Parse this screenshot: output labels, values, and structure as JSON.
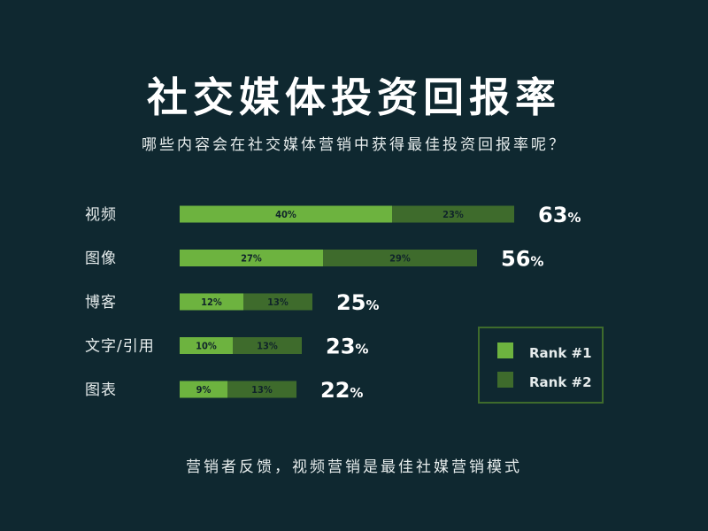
{
  "title": "社交媒体投资回报率",
  "subtitle": "哪些内容会在社交媒体营销中获得最佳投资回报率呢？",
  "footer": "营销者反馈，视频营销是最佳社媒营销模式",
  "colors": {
    "background": "#0f2830",
    "rank1": "#6db33f",
    "rank2": "#3e6b2c",
    "legend_border": "#3e6b2c"
  },
  "chart_data": {
    "type": "bar",
    "orientation": "horizontal",
    "stacked": true,
    "categories": [
      "视频",
      "图像",
      "博客",
      "文字/引用",
      "图表"
    ],
    "series": [
      {
        "name": "Rank #1",
        "values": [
          40,
          27,
          12,
          10,
          9
        ]
      },
      {
        "name": "Rank #2",
        "values": [
          23,
          29,
          13,
          13,
          13
        ]
      }
    ],
    "segment_labels": [
      [
        "40%",
        "23%"
      ],
      [
        "27%",
        "29%"
      ],
      [
        "12%",
        "13%"
      ],
      [
        "10%",
        "13%"
      ],
      [
        "9%",
        "13%"
      ]
    ],
    "totals": [
      63,
      56,
      25,
      23,
      22
    ],
    "total_labels": [
      "63%",
      "56%",
      "25%",
      "23%",
      "22%"
    ],
    "legend": {
      "placement": "bottom-right",
      "entries": [
        "Rank #1",
        "Rank #2"
      ]
    }
  }
}
